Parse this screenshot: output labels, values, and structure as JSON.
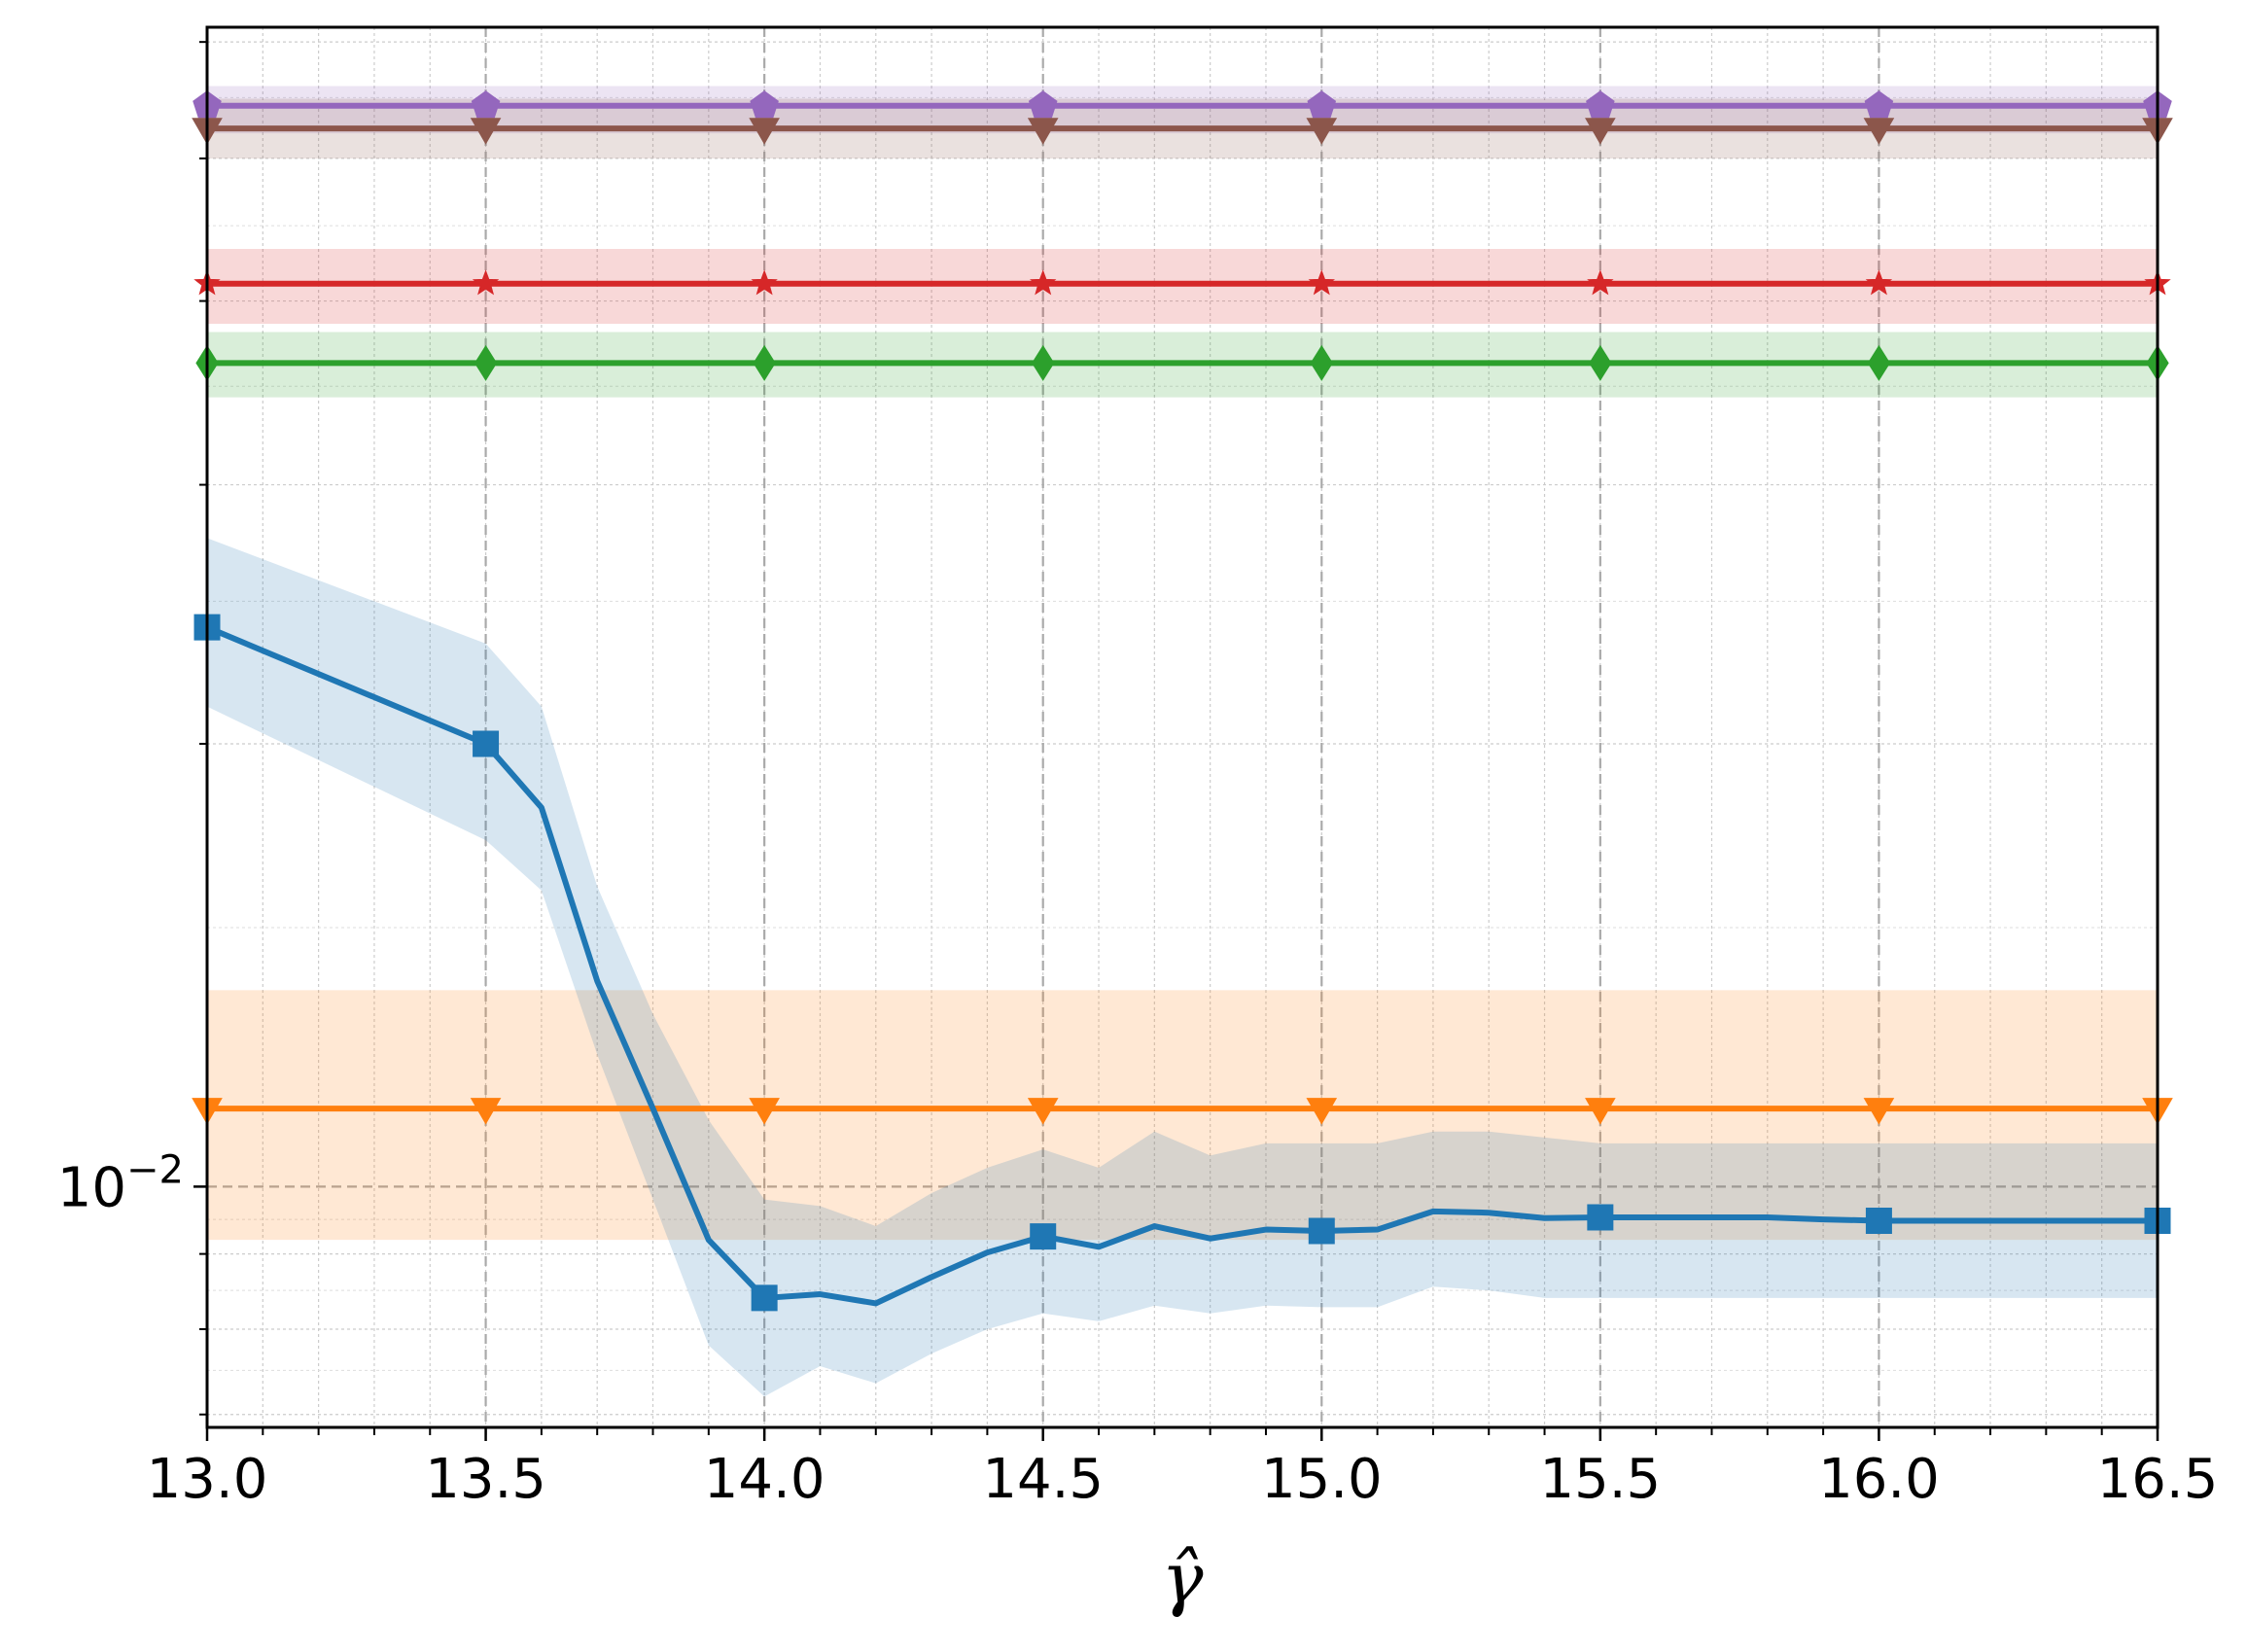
{
  "chart_data": {
    "type": "line",
    "xlabel": "γ̂",
    "ylabel": "",
    "title": "",
    "xlim": [
      13.0,
      16.5
    ],
    "ylim": [
      0.00686,
      0.0614
    ],
    "yscale": "log",
    "grid": {
      "major": true,
      "minor": true,
      "major_style": "dashed gray",
      "minor_style": "dotted light gray"
    },
    "legend": "none",
    "x_ticks": [
      13.0,
      13.5,
      14.0,
      14.5,
      15.0,
      15.5,
      16.0,
      16.5
    ],
    "x_tick_labels": [
      "13.0",
      "13.5",
      "14.0",
      "14.5",
      "15.0",
      "15.5",
      "16.0",
      "16.5"
    ],
    "y_ticks": [
      0.01
    ],
    "y_tick_labels": [
      {
        "base": "10",
        "exp": "−2"
      }
    ],
    "series": [
      {
        "color": "#9467bd",
        "marker": "pentagon",
        "x": [
          13.0,
          16.5
        ],
        "y": [
          0.0543,
          0.0543
        ],
        "band_lower": [
          0.052,
          0.052
        ],
        "band_upper": [
          0.056,
          0.056
        ],
        "marker_x": [
          13.0,
          13.5,
          14.0,
          14.5,
          15.0,
          15.5,
          16.0,
          16.5
        ]
      },
      {
        "color": "#8c564b",
        "marker": "triangle-down",
        "x": [
          13.0,
          16.5
        ],
        "y": [
          0.0524,
          0.0524
        ],
        "band_lower": [
          0.05,
          0.05
        ],
        "band_upper": [
          0.0549,
          0.0549
        ],
        "marker_x": [
          13.0,
          13.5,
          14.0,
          14.5,
          15.0,
          15.5,
          16.0,
          16.5
        ]
      },
      {
        "color": "#d62728",
        "marker": "star",
        "x": [
          13.0,
          16.5
        ],
        "y": [
          0.0411,
          0.0411
        ],
        "band_lower": [
          0.0386,
          0.0386
        ],
        "band_upper": [
          0.0434,
          0.0434
        ],
        "marker_x": [
          13.0,
          13.5,
          14.0,
          14.5,
          15.0,
          15.5,
          16.0,
          16.5
        ]
      },
      {
        "color": "#2ca02c",
        "marker": "diamond",
        "x": [
          13.0,
          16.5
        ],
        "y": [
          0.0363,
          0.0363
        ],
        "band_lower": [
          0.0344,
          0.0344
        ],
        "band_upper": [
          0.0381,
          0.0381
        ],
        "marker_x": [
          13.0,
          13.5,
          14.0,
          14.5,
          15.0,
          15.5,
          16.0,
          16.5
        ]
      },
      {
        "color": "#ff7f0e",
        "marker": "triangle-down",
        "x": [
          13.0,
          16.5
        ],
        "y": [
          0.0113,
          0.0113
        ],
        "band_lower": [
          0.0092,
          0.0092
        ],
        "band_upper": [
          0.0136,
          0.0136
        ],
        "marker_x": [
          13.0,
          13.5,
          14.0,
          14.5,
          15.0,
          15.5,
          16.0,
          16.5
        ]
      },
      {
        "color": "#1f77b4",
        "marker": "square",
        "x": [
          13.0,
          13.5,
          13.6,
          13.7,
          13.8,
          13.9,
          14.0,
          14.1,
          14.2,
          14.3,
          14.4,
          14.5,
          14.6,
          14.7,
          14.8,
          14.9,
          15.0,
          15.1,
          15.2,
          15.3,
          15.4,
          15.5,
          15.6,
          15.7,
          15.8,
          15.9,
          16.0,
          16.1,
          16.2,
          16.3,
          16.4,
          16.5
        ],
        "y": [
          0.024,
          0.02,
          0.0181,
          0.0138,
          0.0113,
          0.0092,
          0.0084,
          0.00845,
          0.00833,
          0.00868,
          0.00902,
          0.00925,
          0.0091,
          0.0094,
          0.00922,
          0.00935,
          0.00933,
          0.00935,
          0.00962,
          0.0096,
          0.00952,
          0.00953,
          0.00953,
          0.00953,
          0.00953,
          0.0095,
          0.00948,
          0.00948,
          0.00948,
          0.00948,
          0.00948,
          0.00948
        ],
        "band_lower": [
          0.0212,
          0.0172,
          0.0159,
          0.0123,
          0.0098,
          0.0078,
          0.0072,
          0.00755,
          0.00735,
          0.0077,
          0.008,
          0.0082,
          0.0081,
          0.0083,
          0.0082,
          0.0083,
          0.00828,
          0.00828,
          0.00855,
          0.0085,
          0.0084,
          0.0084,
          0.0084,
          0.0084,
          0.0084,
          0.0084,
          0.0084,
          0.0084,
          0.0084,
          0.0084,
          0.0084,
          0.0084
        ],
        "band_upper": [
          0.0276,
          0.0234,
          0.0212,
          0.016,
          0.0131,
          0.0111,
          0.0098,
          0.0097,
          0.0094,
          0.0099,
          0.0103,
          0.0106,
          0.0103,
          0.0109,
          0.0105,
          0.0107,
          0.0107,
          0.0107,
          0.0109,
          0.0109,
          0.0108,
          0.0107,
          0.0107,
          0.0107,
          0.0107,
          0.0107,
          0.0107,
          0.0107,
          0.0107,
          0.0107,
          0.0107,
          0.0107
        ],
        "marker_x": [
          13.0,
          13.5,
          14.0,
          14.5,
          15.0,
          15.5,
          16.0,
          16.5
        ]
      }
    ]
  }
}
